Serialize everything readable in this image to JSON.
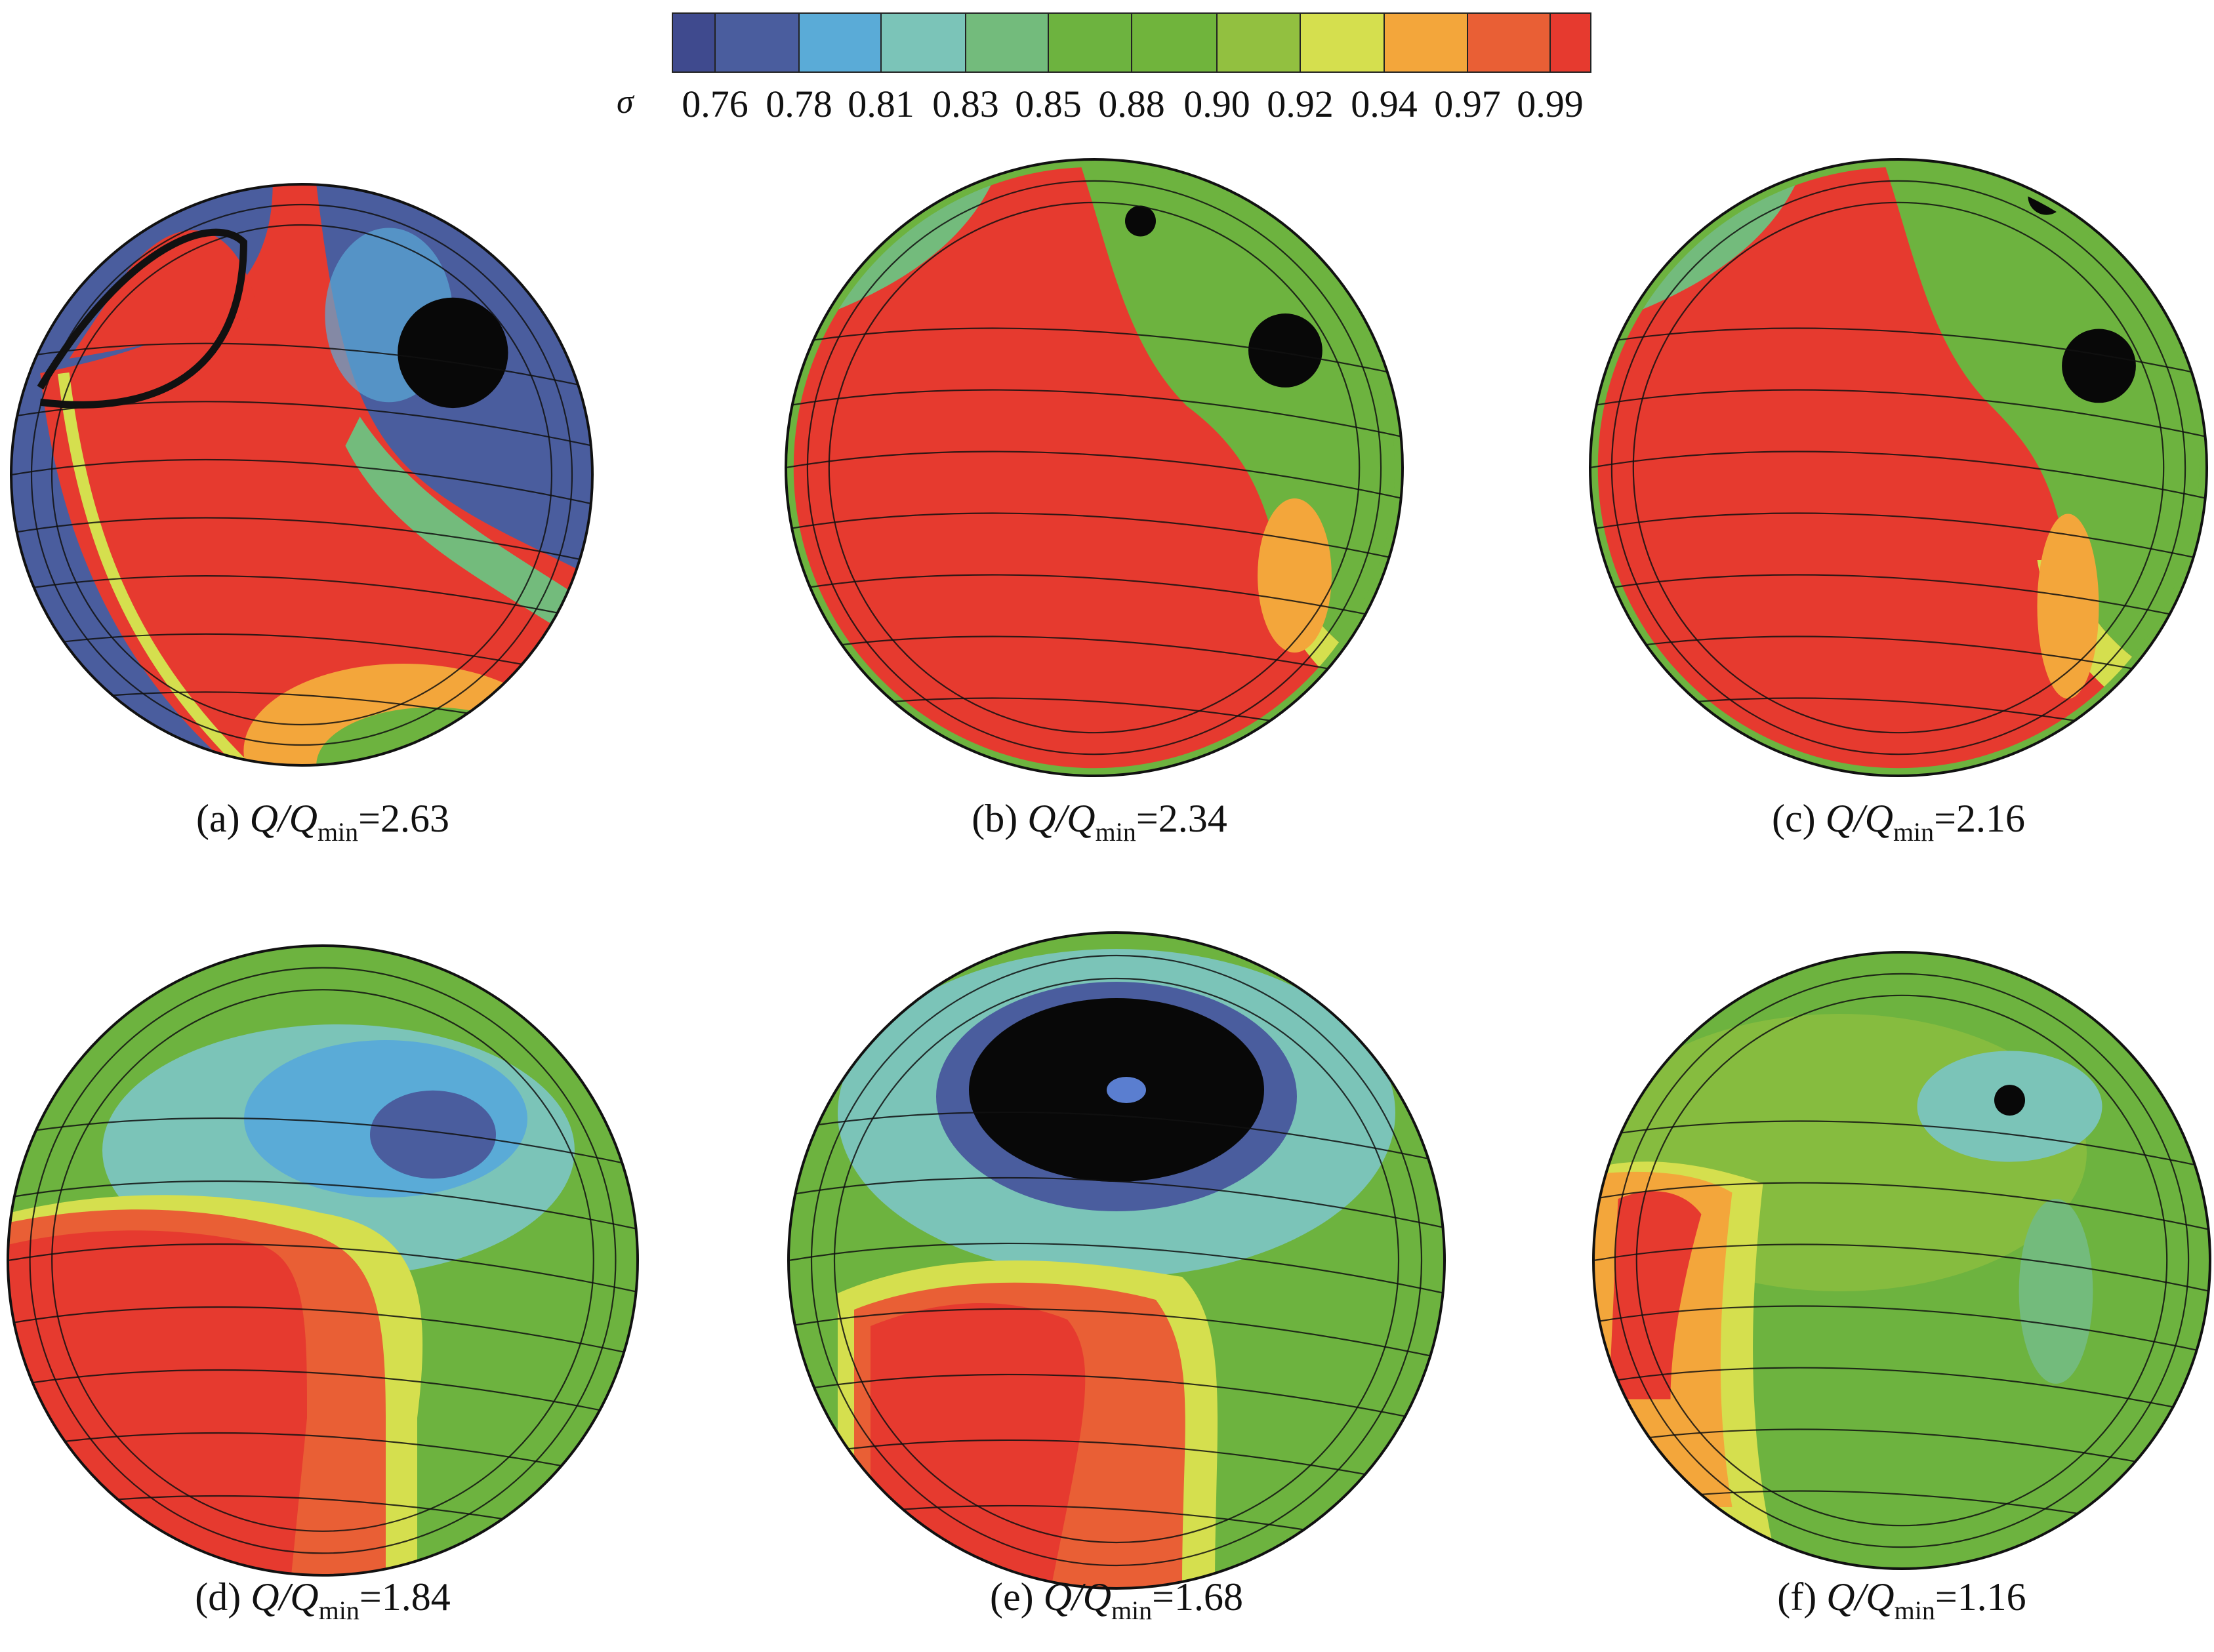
{
  "chart_data": {
    "type": "heatmap",
    "title": "",
    "colorbar": {
      "symbol": "σ",
      "tick_labels": [
        "0.76",
        "0.78",
        "0.81",
        "0.83",
        "0.85",
        "0.88",
        "0.90",
        "0.92",
        "0.94",
        "0.97",
        "0.99"
      ],
      "colors": [
        "#3f4a8e",
        "#4a5d9e",
        "#5aabd7",
        "#7bc4b8",
        "#73bb7c",
        "#6db33f",
        "#70b43c",
        "#92c040",
        "#d5df4e",
        "#f3a63b",
        "#e95f35",
        "#e63a2f"
      ]
    },
    "ratio_label": {
      "q": "Q",
      "slash": "/",
      "q2": "Q",
      "sub": "min"
    },
    "panels": [
      {
        "tag": "(a)",
        "value": "=2.63"
      },
      {
        "tag": "(b)",
        "value": "=2.34"
      },
      {
        "tag": "(c)",
        "value": "=2.16"
      },
      {
        "tag": "(d)",
        "value": "=1.84"
      },
      {
        "tag": "(e)",
        "value": "=1.68"
      },
      {
        "tag": "(f)",
        "value": "=1.16"
      }
    ]
  }
}
